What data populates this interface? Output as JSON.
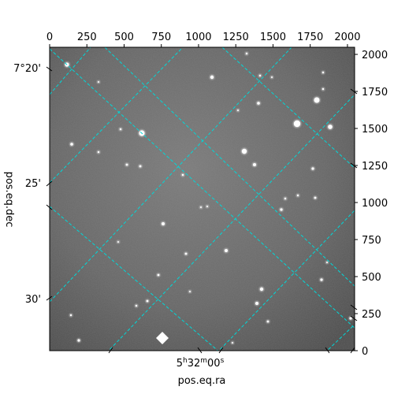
{
  "colors": {
    "grid": "#00d8d8",
    "sky_background": "#6a6a6a",
    "star": "#ffffff",
    "frame": "#000000"
  },
  "labels": {
    "x_axis_bottom": "pos.eq.ra",
    "y_axis_left": "pos.eq.dec"
  },
  "ticks": {
    "top_pixel": [
      "0",
      "250",
      "500",
      "750",
      "1000",
      "1250",
      "1500",
      "1750",
      "2000"
    ],
    "right_pixel": [
      "0",
      "250",
      "500",
      "750",
      "1000",
      "1250",
      "1500",
      "1750",
      "2000"
    ],
    "left_dec": [
      "7°20'",
      "25'",
      "30'"
    ],
    "bottom_ra": {
      "hours": "5",
      "hours_unit": "h",
      "minutes": "32",
      "minutes_unit": "m",
      "seconds": "00",
      "seconds_unit": "s"
    }
  },
  "chart_data": {
    "type": "image",
    "title": "",
    "colormap": "gray",
    "pixel_axes": {
      "x_range": [
        0,
        2048
      ],
      "y_range": [
        0,
        2048
      ],
      "x_ticks": [
        0,
        250,
        500,
        750,
        1000,
        1250,
        1500,
        1750,
        2000
      ],
      "y_ticks": [
        0,
        250,
        500,
        750,
        1000,
        1250,
        1500,
        1750,
        2000
      ]
    },
    "world_axes": {
      "xlabel": "pos.eq.ra",
      "ylabel": "pos.eq.dec",
      "dec_tick_labels": [
        "7°20'",
        "25'",
        "30'"
      ],
      "ra_tick_labels": [
        "5h32m00s"
      ]
    },
    "grid": true,
    "grid_style": "dashed"
  }
}
